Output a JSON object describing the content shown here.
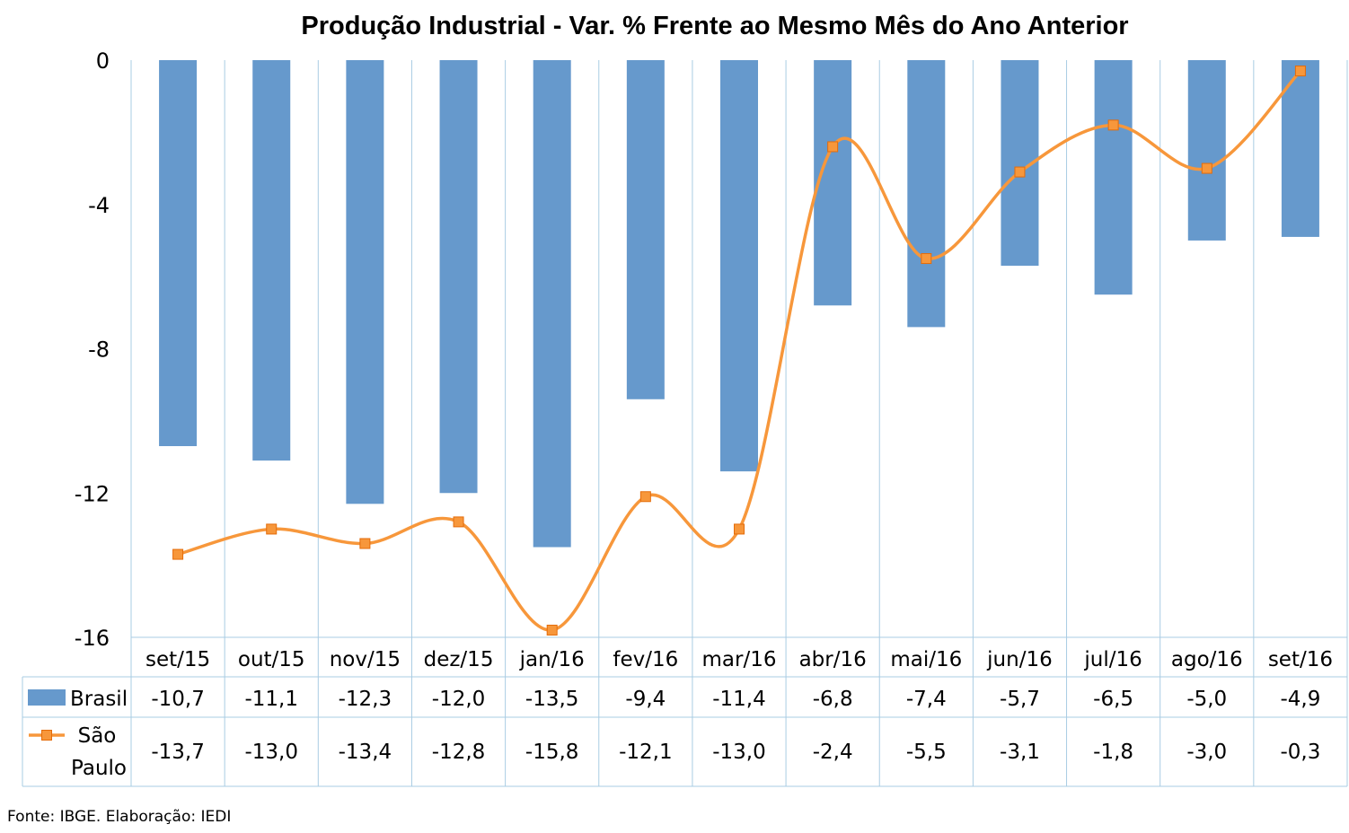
{
  "chart_data": {
    "type": "bar",
    "title": "Produção Industrial - Var. % Frente ao Mesmo Mês do Ano Anterior",
    "categories": [
      "set/15",
      "out/15",
      "nov/15",
      "dez/15",
      "jan/16",
      "fev/16",
      "mar/16",
      "abr/16",
      "mai/16",
      "jun/16",
      "jul/16",
      "ago/16",
      "set/16"
    ],
    "series": [
      {
        "name": "Brasil",
        "type": "bar",
        "color": "#6699CC",
        "values": [
          -10.7,
          -11.1,
          -12.3,
          -12.0,
          -13.5,
          -9.4,
          -11.4,
          -6.8,
          -7.4,
          -5.7,
          -6.5,
          -5.0,
          -4.9
        ],
        "labels": [
          "-10,7",
          "-11,1",
          "-12,3",
          "-12,0",
          "-13,5",
          "-9,4",
          "-11,4",
          "-6,8",
          "-7,4",
          "-5,7",
          "-6,5",
          "-5,0",
          "-4,9"
        ]
      },
      {
        "name_lines": [
          "São",
          "Paulo"
        ],
        "type": "line",
        "smooth": true,
        "marker": "square",
        "color": "#F7973B",
        "values": [
          -13.7,
          -13.0,
          -13.4,
          -12.8,
          -15.8,
          -12.1,
          -13.0,
          -2.4,
          -5.5,
          -3.1,
          -1.8,
          -3.0,
          -0.3
        ],
        "labels": [
          "-13,7",
          "-13,0",
          "-13,4",
          "-12,8",
          "-15,8",
          "-12,1",
          "-13,0",
          "-2,4",
          "-5,5",
          "-3,1",
          "-1,8",
          "-3,0",
          "-0,3"
        ]
      }
    ],
    "yticks": [
      0,
      -4,
      -8,
      -12,
      -16
    ],
    "ytick_labels": [
      "0",
      "-4",
      "-8",
      "-12",
      "-16"
    ],
    "ylim": [
      -16,
      0
    ],
    "grid": "vertical",
    "legend": "data-table"
  },
  "source_note": "Fonte: IBGE. Elaboração: IEDI"
}
